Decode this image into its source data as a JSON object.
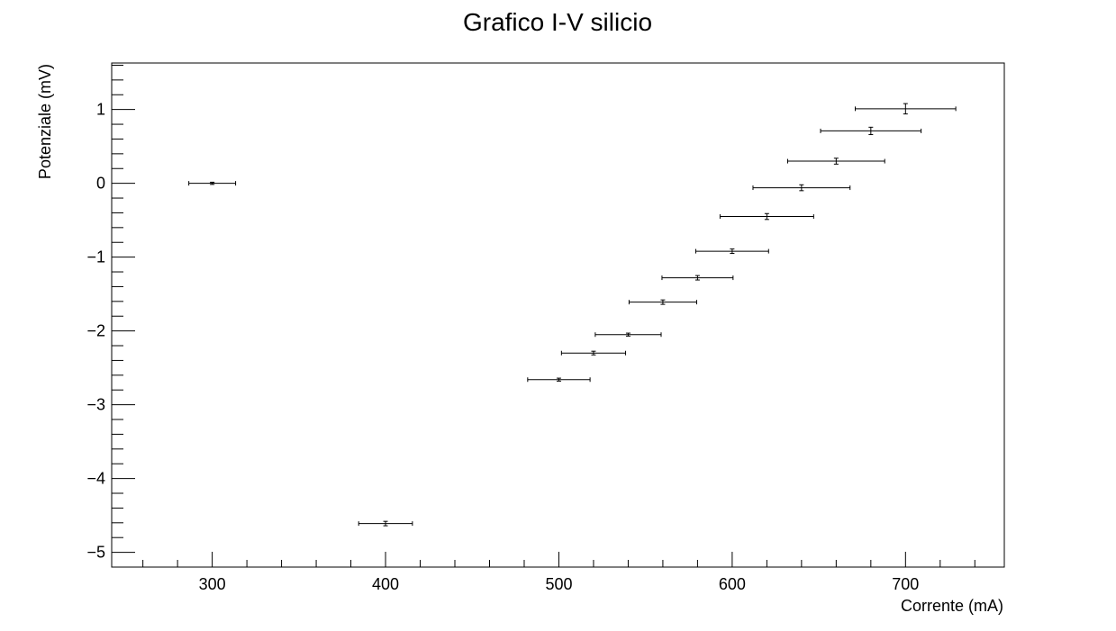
{
  "chart_data": {
    "type": "scatter",
    "title": "Grafico I-V silicio",
    "xlabel": "Corrente (mA)",
    "ylabel": "Potenziale (mV)",
    "xlim": [
      242,
      757
    ],
    "ylim": [
      -5.2,
      1.63
    ],
    "x_ticks": [
      300,
      400,
      500,
      600,
      700
    ],
    "y_ticks": [
      1,
      0,
      -1,
      -2,
      -3,
      -4,
      -5
    ],
    "x_tick_labels": [
      "300",
      "400",
      "500",
      "600",
      "700"
    ],
    "y_tick_labels": [
      "1",
      "0",
      "−1",
      "−2",
      "−3",
      "−4",
      "−5"
    ],
    "grid": false,
    "points": [
      {
        "x": 300,
        "y": 0.0,
        "xerr": 13.5,
        "yerr": 0.015
      },
      {
        "x": 400,
        "y": -4.61,
        "xerr": 15.5,
        "yerr": 0.03
      },
      {
        "x": 500,
        "y": -2.66,
        "xerr": 18,
        "yerr": 0.02
      },
      {
        "x": 520,
        "y": -2.3,
        "xerr": 18.5,
        "yerr": 0.025
      },
      {
        "x": 540,
        "y": -2.05,
        "xerr": 19,
        "yerr": 0.02
      },
      {
        "x": 560,
        "y": -1.61,
        "xerr": 19.5,
        "yerr": 0.03
      },
      {
        "x": 580,
        "y": -1.28,
        "xerr": 20.5,
        "yerr": 0.03
      },
      {
        "x": 600,
        "y": -0.92,
        "xerr": 21,
        "yerr": 0.03
      },
      {
        "x": 620,
        "y": -0.45,
        "xerr": 27,
        "yerr": 0.04
      },
      {
        "x": 640,
        "y": -0.06,
        "xerr": 28,
        "yerr": 0.04
      },
      {
        "x": 660,
        "y": 0.3,
        "xerr": 28,
        "yerr": 0.04
      },
      {
        "x": 680,
        "y": 0.71,
        "xerr": 29,
        "yerr": 0.05
      },
      {
        "x": 700,
        "y": 1.01,
        "xerr": 29,
        "yerr": 0.07
      }
    ]
  }
}
